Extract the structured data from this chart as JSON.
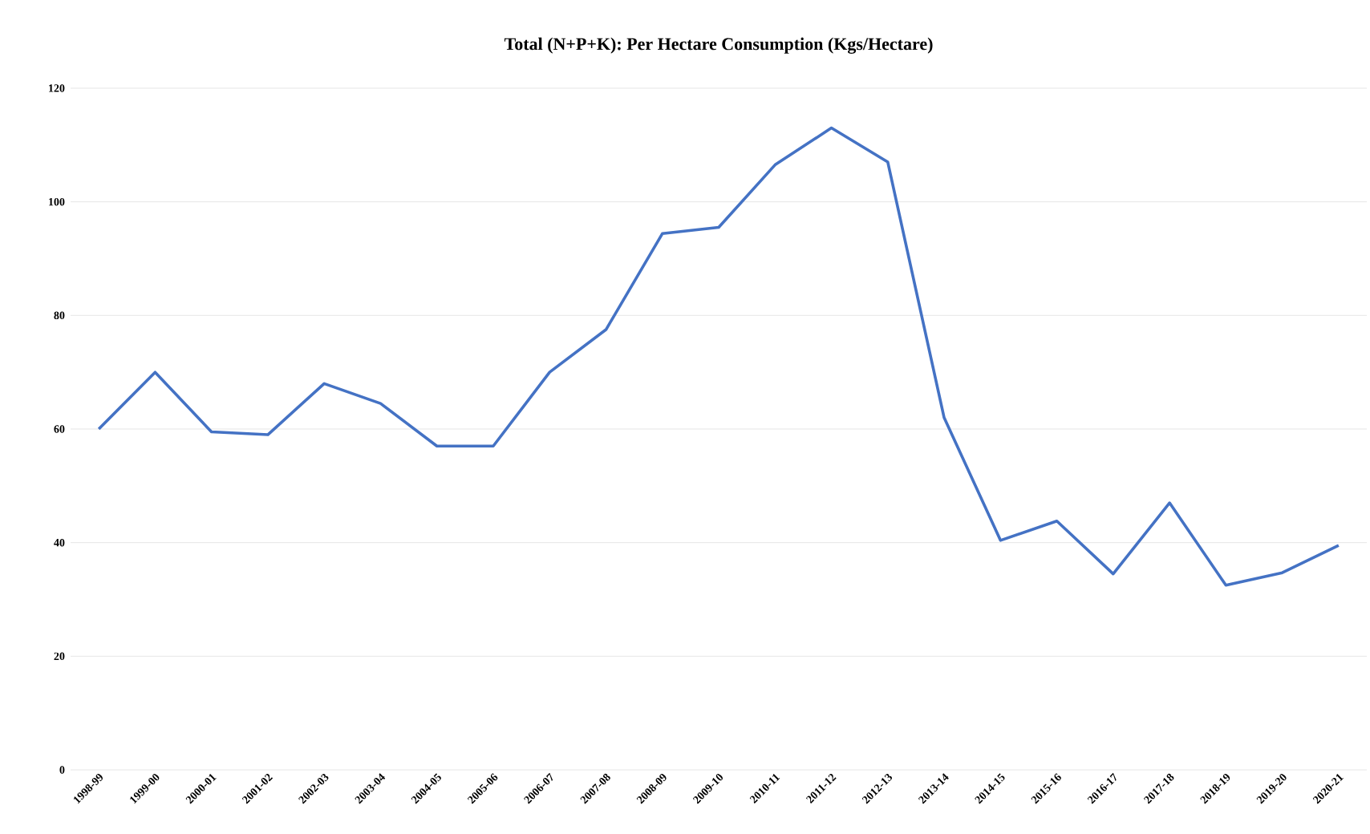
{
  "chart_data": {
    "type": "line",
    "title": "Total (N+P+K): Per Hectare Consumption  (Kgs/Hectare)",
    "categories": [
      "1998-99",
      "1999-00",
      "2000-01",
      "2001-02",
      "2002-03",
      "2003-04",
      "2004-05",
      "2005-06",
      "2006-07",
      "2007-08",
      "2008-09",
      "2009-10",
      "2010-11",
      "2011-12",
      "2012-13",
      "2013-14",
      "2014-15",
      "2015-16",
      "2016-17",
      "2017-18",
      "2018-19",
      "2019-20",
      "2020-21"
    ],
    "values": [
      60,
      70,
      59.5,
      59,
      68,
      64.5,
      57,
      57,
      70,
      77.5,
      94.4,
      95.5,
      106.5,
      113,
      107,
      62,
      40.4,
      43.8,
      34.5,
      47,
      32.5,
      34.7,
      39.5
    ],
    "color": "#4472c4",
    "ylim": [
      0,
      120
    ],
    "yticks": [
      0,
      20,
      40,
      60,
      80,
      100,
      120
    ],
    "grid": "y",
    "marker": "none",
    "line_style": "solid"
  }
}
